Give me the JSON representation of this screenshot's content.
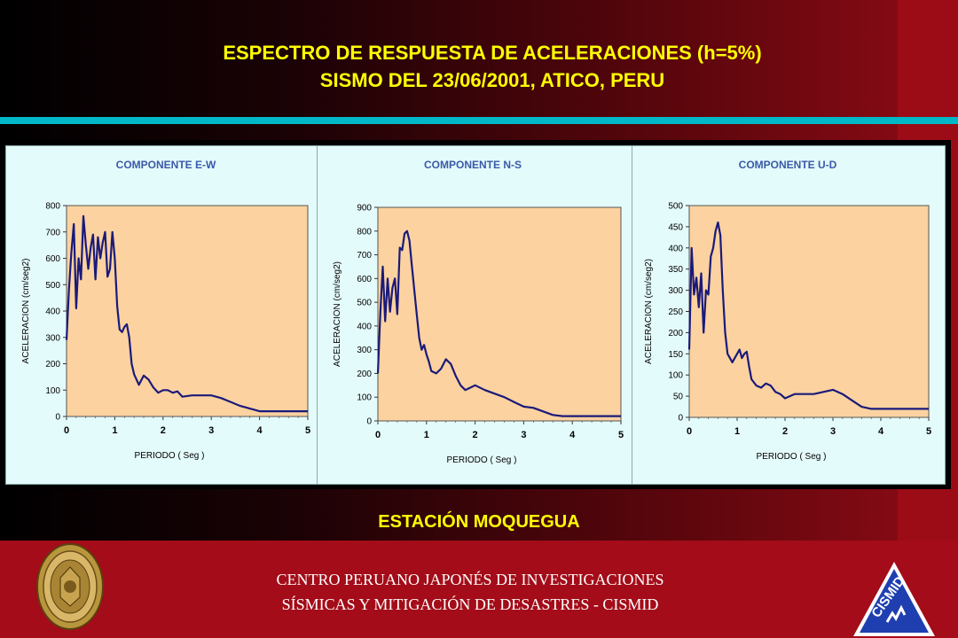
{
  "title": {
    "line1": "ESPECTRO DE RESPUESTA DE ACELERACIONES (h=5%)",
    "line2": "SISMO DEL 23/06/2001, ATICO, PERU"
  },
  "station": "ESTACIÓN MOQUEGUA",
  "footer": {
    "line1": "CENTRO PERUANO JAPONÉS DE INVESTIGACIONES",
    "line2": "SÍSMICAS Y MITIGACIÓN DE DESASTRES - CISMID",
    "logo_text": "CISMID"
  },
  "colors": {
    "title": "#ffff00",
    "accent_bar": "#00b8c8",
    "panel_bg": "#e4fbfb",
    "plot_bg": "#fcd2a0",
    "curve": "#1a1a7a",
    "heading": "#3a5aa8"
  },
  "chart_data": [
    {
      "type": "line",
      "title": "COMPONENTE E-W",
      "xlabel": "PERIODO ( Seg )",
      "ylabel": "ACELERACION (cm/seg2)",
      "xlim": [
        0,
        5
      ],
      "ylim": [
        0,
        800
      ],
      "xticks": [
        0,
        1,
        2,
        3,
        4,
        5
      ],
      "yticks": [
        0,
        100,
        200,
        300,
        400,
        500,
        600,
        700,
        800
      ],
      "grid": false,
      "x": [
        0.0,
        0.05,
        0.1,
        0.15,
        0.2,
        0.25,
        0.3,
        0.35,
        0.4,
        0.45,
        0.5,
        0.55,
        0.6,
        0.65,
        0.7,
        0.75,
        0.8,
        0.85,
        0.9,
        0.95,
        1.0,
        1.05,
        1.1,
        1.15,
        1.2,
        1.25,
        1.3,
        1.35,
        1.4,
        1.5,
        1.6,
        1.7,
        1.8,
        1.9,
        2.0,
        2.1,
        2.2,
        2.3,
        2.4,
        2.6,
        2.8,
        3.0,
        3.2,
        3.4,
        3.6,
        3.8,
        4.0,
        4.5,
        5.0
      ],
      "y": [
        290,
        480,
        620,
        730,
        410,
        600,
        520,
        760,
        650,
        560,
        640,
        690,
        520,
        680,
        600,
        660,
        700,
        530,
        560,
        700,
        600,
        420,
        330,
        320,
        340,
        350,
        300,
        200,
        160,
        120,
        155,
        140,
        110,
        90,
        100,
        100,
        90,
        95,
        75,
        80,
        80,
        80,
        70,
        55,
        40,
        30,
        20,
        20,
        20
      ]
    },
    {
      "type": "line",
      "title": "COMPONENTE N-S",
      "xlabel": "PERIODO ( Seg )",
      "ylabel": "ACELERACION (cm/seg2)",
      "xlim": [
        0,
        5
      ],
      "ylim": [
        0,
        900
      ],
      "xticks": [
        0,
        1,
        2,
        3,
        4,
        5
      ],
      "yticks": [
        0,
        100,
        200,
        300,
        400,
        500,
        600,
        700,
        800,
        900
      ],
      "grid": false,
      "x": [
        0.0,
        0.05,
        0.1,
        0.15,
        0.2,
        0.25,
        0.3,
        0.35,
        0.4,
        0.45,
        0.5,
        0.55,
        0.6,
        0.65,
        0.7,
        0.75,
        0.8,
        0.85,
        0.9,
        0.95,
        1.0,
        1.05,
        1.1,
        1.2,
        1.3,
        1.4,
        1.5,
        1.6,
        1.7,
        1.8,
        1.9,
        2.0,
        2.2,
        2.4,
        2.6,
        2.8,
        3.0,
        3.2,
        3.4,
        3.6,
        3.8,
        4.0,
        4.5,
        5.0
      ],
      "y": [
        200,
        450,
        650,
        420,
        600,
        460,
        560,
        600,
        450,
        730,
        720,
        790,
        800,
        760,
        650,
        550,
        450,
        350,
        300,
        320,
        280,
        250,
        210,
        200,
        220,
        260,
        240,
        190,
        150,
        130,
        140,
        150,
        130,
        115,
        100,
        80,
        60,
        55,
        40,
        25,
        20,
        20,
        20,
        20
      ]
    },
    {
      "type": "line",
      "title": "COMPONENTE U-D",
      "xlabel": "PERIODO ( Seg )",
      "ylabel": "ACELERACION (cm/seg2)",
      "xlim": [
        0,
        5
      ],
      "ylim": [
        0,
        500
      ],
      "xticks": [
        0,
        1,
        2,
        3,
        4,
        5
      ],
      "yticks": [
        0,
        50,
        100,
        150,
        200,
        250,
        300,
        350,
        400,
        450,
        500
      ],
      "grid": false,
      "x": [
        0.0,
        0.05,
        0.1,
        0.15,
        0.2,
        0.25,
        0.3,
        0.35,
        0.4,
        0.45,
        0.5,
        0.55,
        0.6,
        0.65,
        0.7,
        0.75,
        0.8,
        0.85,
        0.9,
        0.95,
        1.0,
        1.05,
        1.1,
        1.15,
        1.2,
        1.25,
        1.3,
        1.4,
        1.5,
        1.6,
        1.7,
        1.8,
        1.9,
        2.0,
        2.1,
        2.2,
        2.4,
        2.6,
        2.8,
        3.0,
        3.2,
        3.4,
        3.6,
        3.8,
        4.0,
        4.5,
        5.0
      ],
      "y": [
        160,
        400,
        290,
        330,
        260,
        340,
        200,
        300,
        290,
        380,
        400,
        440,
        460,
        430,
        300,
        200,
        150,
        140,
        130,
        140,
        150,
        160,
        140,
        150,
        155,
        120,
        90,
        75,
        70,
        80,
        75,
        60,
        55,
        45,
        50,
        55,
        55,
        55,
        60,
        65,
        55,
        40,
        25,
        20,
        20,
        20,
        20
      ]
    }
  ]
}
